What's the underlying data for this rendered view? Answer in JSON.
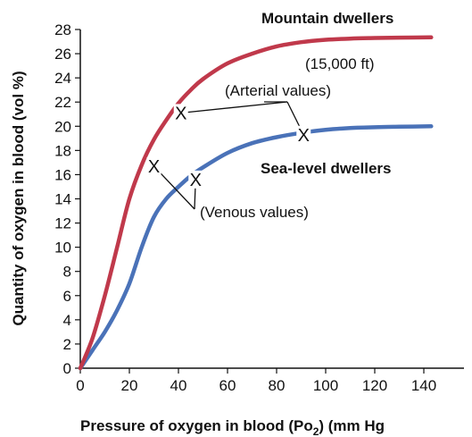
{
  "chart_data": {
    "type": "line",
    "xlabel": "Pressure of oxygen in blood (Po",
    "xlabel_sub": "2",
    "xlabel_suffix": ") (mm Hg",
    "ylabel": "Quantity of oxygen in blood (vol %)",
    "xlim": [
      0,
      150
    ],
    "ylim": [
      0,
      28
    ],
    "xticks": [
      0,
      20,
      40,
      60,
      80,
      100,
      120,
      140
    ],
    "yticks": [
      0,
      2,
      4,
      6,
      8,
      10,
      12,
      14,
      16,
      18,
      20,
      22,
      24,
      26,
      28
    ],
    "grid": false,
    "series": [
      {
        "name": "Mountain dwellers",
        "subtitle": "(15,000 ft)",
        "color": "#c0394b",
        "x": [
          0,
          5,
          10,
          15,
          20,
          25,
          30,
          35,
          40,
          45,
          50,
          60,
          70,
          80,
          90,
          100,
          110,
          120,
          130,
          143
        ],
        "y": [
          0,
          2.5,
          6.0,
          10.0,
          14.0,
          16.8,
          18.9,
          20.5,
          21.9,
          23.0,
          23.9,
          25.2,
          26.0,
          26.6,
          26.95,
          27.15,
          27.25,
          27.3,
          27.33,
          27.35
        ]
      },
      {
        "name": "Sea-level dwellers",
        "color": "#4a72b8",
        "x": [
          0,
          5,
          10,
          15,
          20,
          25,
          30,
          35,
          40,
          45,
          50,
          60,
          70,
          80,
          90,
          100,
          110,
          120,
          130,
          143
        ],
        "y": [
          0,
          1.5,
          3.0,
          4.8,
          7.0,
          10.0,
          12.5,
          14.0,
          15.0,
          15.9,
          16.6,
          17.8,
          18.6,
          19.1,
          19.45,
          19.7,
          19.85,
          19.92,
          19.96,
          20.0
        ]
      }
    ],
    "markers": [
      {
        "symbol": "X",
        "x": 41,
        "y": 21.1,
        "group": "arterial"
      },
      {
        "symbol": "X",
        "x": 91,
        "y": 19.3,
        "group": "arterial"
      },
      {
        "symbol": "X",
        "x": 30,
        "y": 16.7,
        "group": "venous"
      },
      {
        "symbol": "X",
        "x": 47,
        "y": 15.6,
        "group": "venous"
      }
    ],
    "annotations": {
      "arterial": "(Arterial values)",
      "venous": "(Venous values)"
    }
  }
}
